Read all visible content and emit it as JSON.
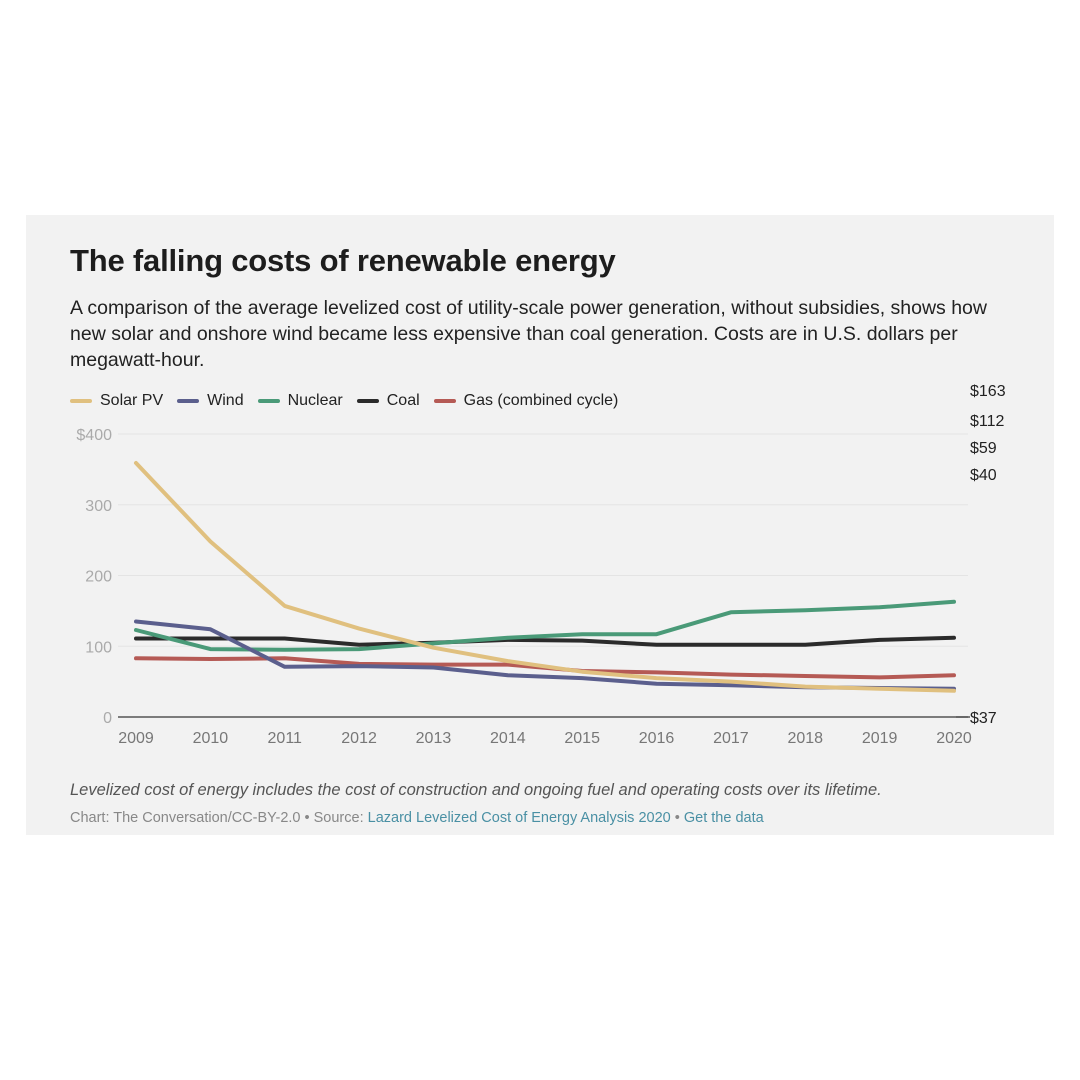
{
  "header": {
    "title": "The falling costs of renewable energy",
    "subtitle": "A comparison of the average levelized cost of utility-scale power generation, without subsidies, shows how new solar and onshore wind became less expensive than coal generation. Costs are in U.S. dollars per megawatt-hour."
  },
  "footer": {
    "note": "Levelized cost of energy includes the cost of construction and ongoing fuel and operating costs over its lifetime.",
    "credit_prefix": "Chart: The Conversation/CC-BY-2.0 • Source: ",
    "source_link": "Lazard Levelized Cost of Energy Analysis 2020",
    "separator": " • ",
    "data_link": "Get the data"
  },
  "chart_data": {
    "type": "line",
    "x": [
      2009,
      2010,
      2011,
      2012,
      2013,
      2014,
      2015,
      2016,
      2017,
      2018,
      2019,
      2020
    ],
    "ylim": [
      0,
      400
    ],
    "y_ticks": [
      0,
      100,
      200,
      300,
      400
    ],
    "y_tick_labels": [
      "0",
      "100",
      "200",
      "300",
      "$400"
    ],
    "grid": true,
    "legend_placement": "top-left",
    "series": [
      {
        "name": "Solar PV",
        "color": "#e0c07f",
        "values": [
          359,
          248,
          157,
          125,
          98,
          79,
          64,
          55,
          50,
          43,
          40,
          37
        ]
      },
      {
        "name": "Wind",
        "color": "#5b5f8d",
        "values": [
          135,
          124,
          71,
          72,
          70,
          59,
          55,
          47,
          45,
          42,
          41,
          40
        ]
      },
      {
        "name": "Nuclear",
        "color": "#4a9a78",
        "values": [
          123,
          96,
          95,
          96,
          104,
          112,
          117,
          117,
          148,
          151,
          155,
          163
        ]
      },
      {
        "name": "Coal",
        "color": "#2b2b2b",
        "values": [
          111,
          111,
          111,
          102,
          105,
          109,
          108,
          102,
          102,
          102,
          109,
          112
        ]
      },
      {
        "name": "Gas (combined cycle)",
        "color": "#b55a55",
        "values": [
          83,
          82,
          83,
          75,
          74,
          74,
          65,
          63,
          60,
          58,
          56,
          59
        ]
      }
    ],
    "end_labels": [
      {
        "series": "Nuclear",
        "label": "$163",
        "value": 163
      },
      {
        "series": "Coal",
        "label": "$112",
        "value": 112
      },
      {
        "series": "Gas (combined cycle)",
        "label": "$59",
        "value": 59
      },
      {
        "series": "Wind",
        "label": "$40",
        "value": 40
      },
      {
        "series": "Solar PV",
        "label": "$37",
        "value": 37
      }
    ]
  }
}
